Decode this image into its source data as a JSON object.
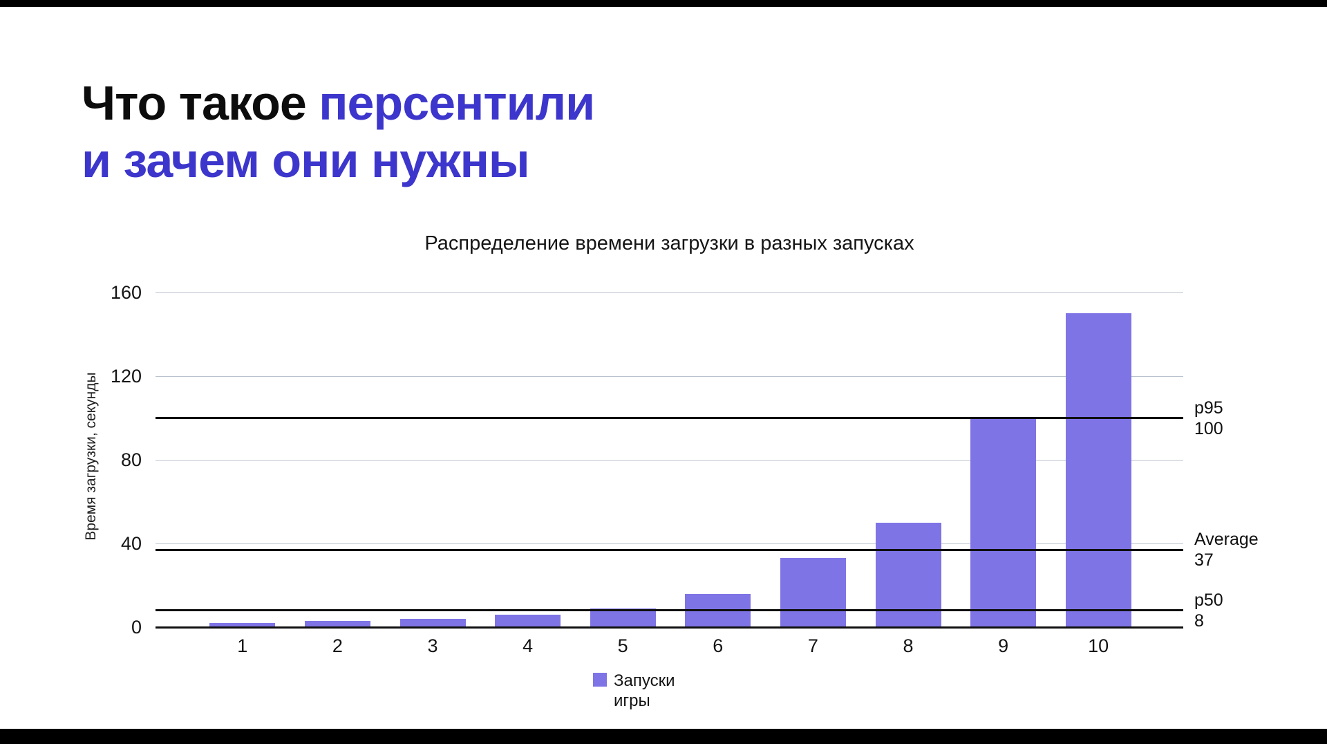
{
  "slide": {
    "title_part1": "Что такое ",
    "title_accent": "персентили",
    "title_line2": "и зачем они нужны",
    "accent_color": "#3d36cc"
  },
  "chart_data": {
    "type": "bar",
    "title": "Распределение времени загрузки в разных запусках",
    "xlabel": "",
    "ylabel": "Время загрузки, секунды",
    "categories": [
      "1",
      "2",
      "3",
      "4",
      "5",
      "6",
      "7",
      "8",
      "9",
      "10"
    ],
    "values": [
      2,
      3,
      4,
      6,
      9,
      16,
      33,
      50,
      100,
      150
    ],
    "ylim": [
      0,
      160
    ],
    "yticks": [
      0,
      40,
      80,
      120,
      160
    ],
    "grid": true,
    "bar_color": "#7e74e6",
    "gridline_color": "#b9c3cd",
    "reference_lines": [
      {
        "name": "p95",
        "value": 100
      },
      {
        "name": "Average",
        "value": 37
      },
      {
        "name": "p50",
        "value": 8
      }
    ],
    "legend": {
      "position": "bottom",
      "line1": "Запуски",
      "line2": "игры"
    }
  }
}
